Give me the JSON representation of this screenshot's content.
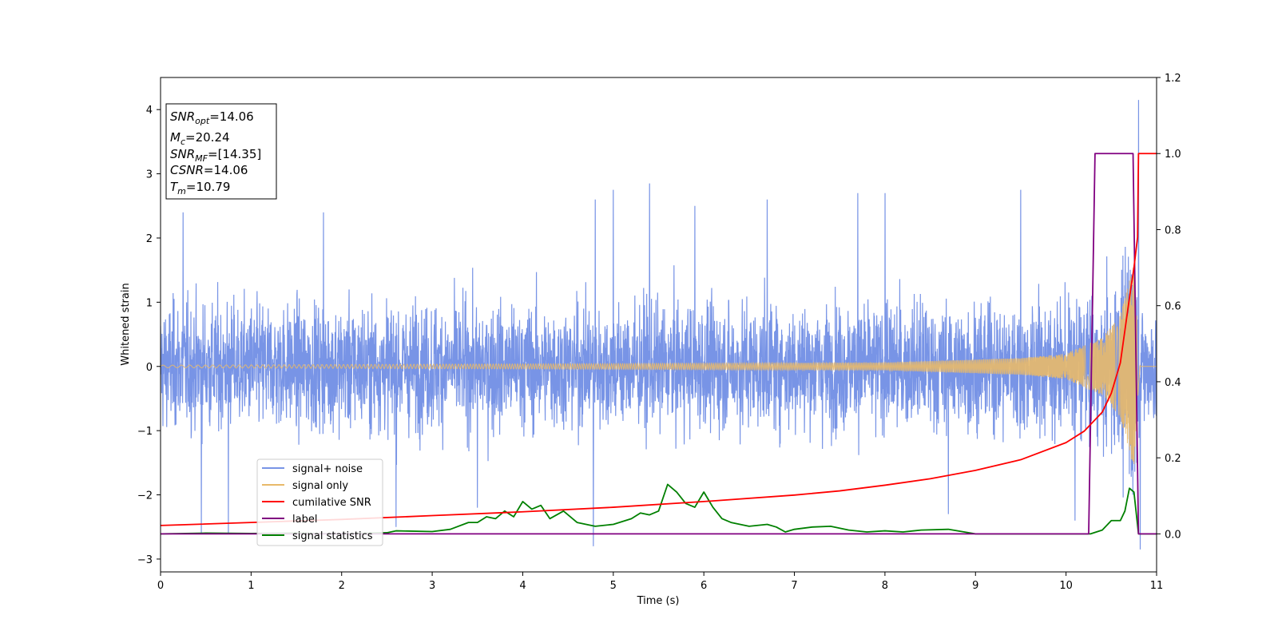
{
  "chart_data": {
    "type": "line",
    "xlabel": "Time (s)",
    "ylabel": "Whitened strain",
    "xlim": [
      0,
      11
    ],
    "ylim": [
      -3.2,
      4.5
    ],
    "ylim_right": [
      -0.1,
      1.2
    ],
    "x_ticks": [
      "0",
      "1",
      "2",
      "3",
      "4",
      "5",
      "6",
      "7",
      "8",
      "9",
      "10",
      "11"
    ],
    "y_ticks": [
      "−3",
      "−2",
      "−1",
      "0",
      "1",
      "2",
      "3",
      "4"
    ],
    "y2_ticks": [
      "0.0",
      "0.2",
      "0.4",
      "0.6",
      "0.8",
      "1.0",
      "1.2"
    ],
    "grid": false,
    "legend_position": "lower-left",
    "annotation": {
      "lines": [
        {
          "label": "SNR",
          "sub": "opt",
          "value": "=14.06"
        },
        {
          "label": "M",
          "sub": "c",
          "value": "=20.24"
        },
        {
          "label": "SNR",
          "sub": "MF",
          "value": "=[14.35]"
        },
        {
          "label": "CSNR",
          "sub": "",
          "value": "=14.06"
        },
        {
          "label": "T",
          "sub": "m",
          "value": "=10.79"
        }
      ]
    },
    "series": [
      {
        "name": "signal+ noise",
        "color": "#7894e6",
        "axis": "left",
        "kind": "noise",
        "typical_amplitude": 1.4,
        "peak_values": [
          {
            "x": 0.25,
            "y": 2.4
          },
          {
            "x": 0.45,
            "y": -2.6
          },
          {
            "x": 0.75,
            "y": -2.6
          },
          {
            "x": 1.8,
            "y": 2.4
          },
          {
            "x": 2.6,
            "y": -2.5
          },
          {
            "x": 3.5,
            "y": -2.2
          },
          {
            "x": 4.8,
            "y": 2.6
          },
          {
            "x": 4.78,
            "y": -2.8
          },
          {
            "x": 5.0,
            "y": 2.75
          },
          {
            "x": 5.4,
            "y": 2.85
          },
          {
            "x": 5.9,
            "y": 2.5
          },
          {
            "x": 6.7,
            "y": 2.6
          },
          {
            "x": 7.7,
            "y": 2.7
          },
          {
            "x": 8.0,
            "y": 2.7
          },
          {
            "x": 8.7,
            "y": -2.3
          },
          {
            "x": 9.5,
            "y": 2.75
          },
          {
            "x": 10.1,
            "y": -2.4
          },
          {
            "x": 10.8,
            "y": 4.15
          },
          {
            "x": 10.82,
            "y": -2.85
          }
        ]
      },
      {
        "name": "signal only",
        "color": "#e8b96a",
        "axis": "left",
        "kind": "chirp",
        "amplitude_envelope": [
          [
            0,
            0.02
          ],
          [
            8,
            0.06
          ],
          [
            9.5,
            0.13
          ],
          [
            10.0,
            0.2
          ],
          [
            10.4,
            0.45
          ],
          [
            10.6,
            0.8
          ],
          [
            10.75,
            1.6
          ],
          [
            10.8,
            0.3
          ],
          [
            10.82,
            0
          ]
        ]
      },
      {
        "name": "cumilative SNR",
        "color": "#ff0000",
        "axis": "right",
        "x": [
          0,
          1,
          2,
          3,
          4,
          5,
          6,
          7,
          7.5,
          8,
          8.5,
          9,
          9.5,
          10,
          10.2,
          10.4,
          10.5,
          10.6,
          10.7,
          10.75,
          10.79,
          10.8,
          11
        ],
        "values": [
          0.022,
          0.03,
          0.038,
          0.048,
          0.058,
          0.07,
          0.085,
          0.102,
          0.113,
          0.128,
          0.145,
          0.167,
          0.195,
          0.24,
          0.27,
          0.32,
          0.37,
          0.45,
          0.62,
          0.7,
          0.78,
          1.0,
          1.0
        ]
      },
      {
        "name": "label",
        "color": "#800080",
        "axis": "right",
        "x": [
          0,
          10.25,
          10.32,
          10.74,
          10.8,
          11
        ],
        "values": [
          0,
          0,
          1,
          1,
          0,
          0
        ]
      },
      {
        "name": "signal statistics",
        "color": "#008000",
        "axis": "right",
        "x": [
          0,
          0.5,
          1,
          1.5,
          2,
          2.5,
          2.6,
          3,
          3.2,
          3.4,
          3.5,
          3.6,
          3.7,
          3.8,
          3.9,
          4.0,
          4.1,
          4.2,
          4.3,
          4.45,
          4.6,
          4.8,
          5.0,
          5.2,
          5.3,
          5.4,
          5.5,
          5.6,
          5.7,
          5.8,
          5.9,
          6.0,
          6.1,
          6.2,
          6.3,
          6.5,
          6.7,
          6.8,
          6.9,
          7.0,
          7.2,
          7.4,
          7.6,
          7.8,
          8.0,
          8.2,
          8.4,
          8.7,
          9.0,
          9.5,
          10.0,
          10.27,
          10.4,
          10.5,
          10.6,
          10.65,
          10.7,
          10.75,
          10.8,
          11
        ],
        "values": [
          0.0,
          0.002,
          0.001,
          0.002,
          0.0,
          0.003,
          0.008,
          0.006,
          0.012,
          0.03,
          0.03,
          0.045,
          0.04,
          0.06,
          0.045,
          0.085,
          0.065,
          0.075,
          0.04,
          0.06,
          0.03,
          0.02,
          0.025,
          0.04,
          0.055,
          0.05,
          0.06,
          0.13,
          0.11,
          0.08,
          0.07,
          0.11,
          0.07,
          0.04,
          0.03,
          0.02,
          0.025,
          0.018,
          0.005,
          0.012,
          0.018,
          0.02,
          0.01,
          0.005,
          0.008,
          0.005,
          0.01,
          0.012,
          0.0,
          0.0,
          0.0,
          0.0,
          0.01,
          0.035,
          0.035,
          0.06,
          0.12,
          0.11,
          0.0,
          0.0
        ]
      }
    ]
  }
}
